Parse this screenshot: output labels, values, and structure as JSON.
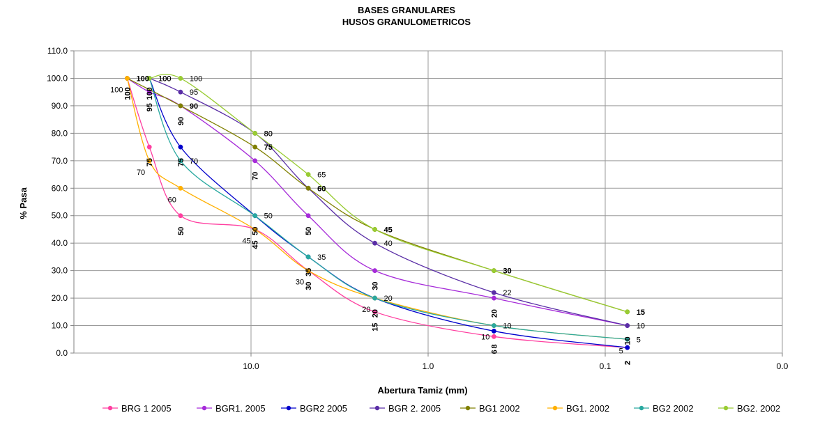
{
  "chart_data": {
    "type": "line",
    "title": [
      "BASES GRANULARES",
      "HUSOS GRANULOMETRICOS"
    ],
    "xlabel": "Abertura Tamiz (mm)",
    "ylabel": "% Pasa",
    "x_scale": "log",
    "x_reversed": true,
    "xlim": [
      100,
      0.01
    ],
    "ylim": [
      0,
      110
    ],
    "y_ticks": [
      0,
      10,
      20,
      30,
      40,
      50,
      60,
      70,
      80,
      90,
      100,
      110
    ],
    "y_tick_labels": [
      "0.0",
      "10.0",
      "20.0",
      "30.0",
      "40.0",
      "50.0",
      "60.0",
      "70.0",
      "80.0",
      "90.0",
      "100.0",
      "110.0"
    ],
    "x_ticks": [
      10,
      1,
      0.1,
      0.01
    ],
    "x_tick_labels": [
      "10.0",
      "1.0",
      "0.1",
      "0.0"
    ],
    "grid": true,
    "legend_position": "bottom",
    "series": [
      {
        "name": "BRG 1 2005",
        "color": "#ff3fa0",
        "label_style": "rot",
        "points": [
          [
            50,
            100
          ],
          [
            37.5,
            75
          ],
          [
            25,
            50
          ],
          [
            9.5,
            45
          ],
          [
            4.75,
            30
          ],
          [
            2,
            15
          ],
          [
            0.425,
            6
          ],
          [
            0.075,
            2
          ]
        ],
        "labels": [
          "100",
          "75",
          "50",
          "45",
          "30",
          "15",
          "6",
          "2"
        ]
      },
      {
        "name": "BGR1. 2005",
        "color": "#a62bd9",
        "label_style": "rot",
        "points": [
          [
            50,
            100
          ],
          [
            37.5,
            95
          ],
          [
            25,
            90
          ],
          [
            9.5,
            70
          ],
          [
            4.75,
            50
          ],
          [
            2,
            30
          ],
          [
            0.425,
            20
          ],
          [
            0.075,
            10
          ]
        ],
        "labels": [
          "100",
          "95",
          "90",
          "70",
          "50",
          "30",
          "20",
          "10"
        ]
      },
      {
        "name": "BGR2 2005",
        "color": "#0000cc",
        "label_style": "rot",
        "points": [
          [
            37.5,
            100
          ],
          [
            25,
            75
          ],
          [
            9.5,
            50
          ],
          [
            4.75,
            35
          ],
          [
            2,
            20
          ],
          [
            0.425,
            8
          ],
          [
            0.075,
            2
          ]
        ],
        "labels": [
          "100",
          "75",
          "50",
          "35",
          "20",
          "8",
          "2"
        ]
      },
      {
        "name": "BGR 2. 2005",
        "color": "#5a2ea6",
        "label_style": "right",
        "points": [
          [
            37.5,
            100
          ],
          [
            25,
            95
          ],
          [
            9.5,
            80
          ],
          [
            4.75,
            60
          ],
          [
            2,
            40
          ],
          [
            0.425,
            22
          ],
          [
            0.075,
            10
          ]
        ],
        "labels": [
          "100",
          "95",
          "80",
          "60",
          "40",
          "22",
          "10"
        ]
      },
      {
        "name": "BG1 2002",
        "color": "#808000",
        "label_style": "right-bold",
        "points": [
          [
            50,
            100
          ],
          [
            25,
            90
          ],
          [
            9.5,
            75
          ],
          [
            4.75,
            60
          ],
          [
            2,
            45
          ],
          [
            0.425,
            30
          ],
          [
            0.075,
            15
          ]
        ],
        "labels": [
          "100",
          "90",
          "75",
          "60",
          "45",
          "30",
          "15"
        ]
      },
      {
        "name": "BG1. 2002",
        "color": "#ffb000",
        "label_style": "left",
        "points": [
          [
            50,
            100
          ],
          [
            37.5,
            70
          ],
          [
            25,
            60
          ],
          [
            9.5,
            45
          ],
          [
            4.75,
            30
          ],
          [
            2,
            20
          ],
          [
            0.425,
            10
          ],
          [
            0.075,
            5
          ]
        ],
        "labels": [
          "100",
          "70",
          "60",
          "45",
          "30",
          "20",
          "10",
          "5"
        ]
      },
      {
        "name": "BG2 2002",
        "color": "#2aa9a0",
        "label_style": "right",
        "points": [
          [
            37.5,
            100
          ],
          [
            25,
            70
          ],
          [
            9.5,
            50
          ],
          [
            4.75,
            35
          ],
          [
            2,
            20
          ],
          [
            0.425,
            10
          ],
          [
            0.075,
            5
          ]
        ],
        "labels": [
          "100",
          "70",
          "50",
          "35",
          "20",
          "10",
          "5"
        ]
      },
      {
        "name": "BG2. 2002",
        "color": "#99cc33",
        "label_style": "right",
        "points": [
          [
            37.5,
            100
          ],
          [
            25,
            100
          ],
          [
            9.5,
            80
          ],
          [
            4.75,
            65
          ],
          [
            2,
            45
          ],
          [
            0.425,
            30
          ],
          [
            0.075,
            15
          ]
        ],
        "labels": [
          "100",
          "100",
          "80",
          "65",
          "45",
          "30",
          "15"
        ]
      }
    ]
  }
}
